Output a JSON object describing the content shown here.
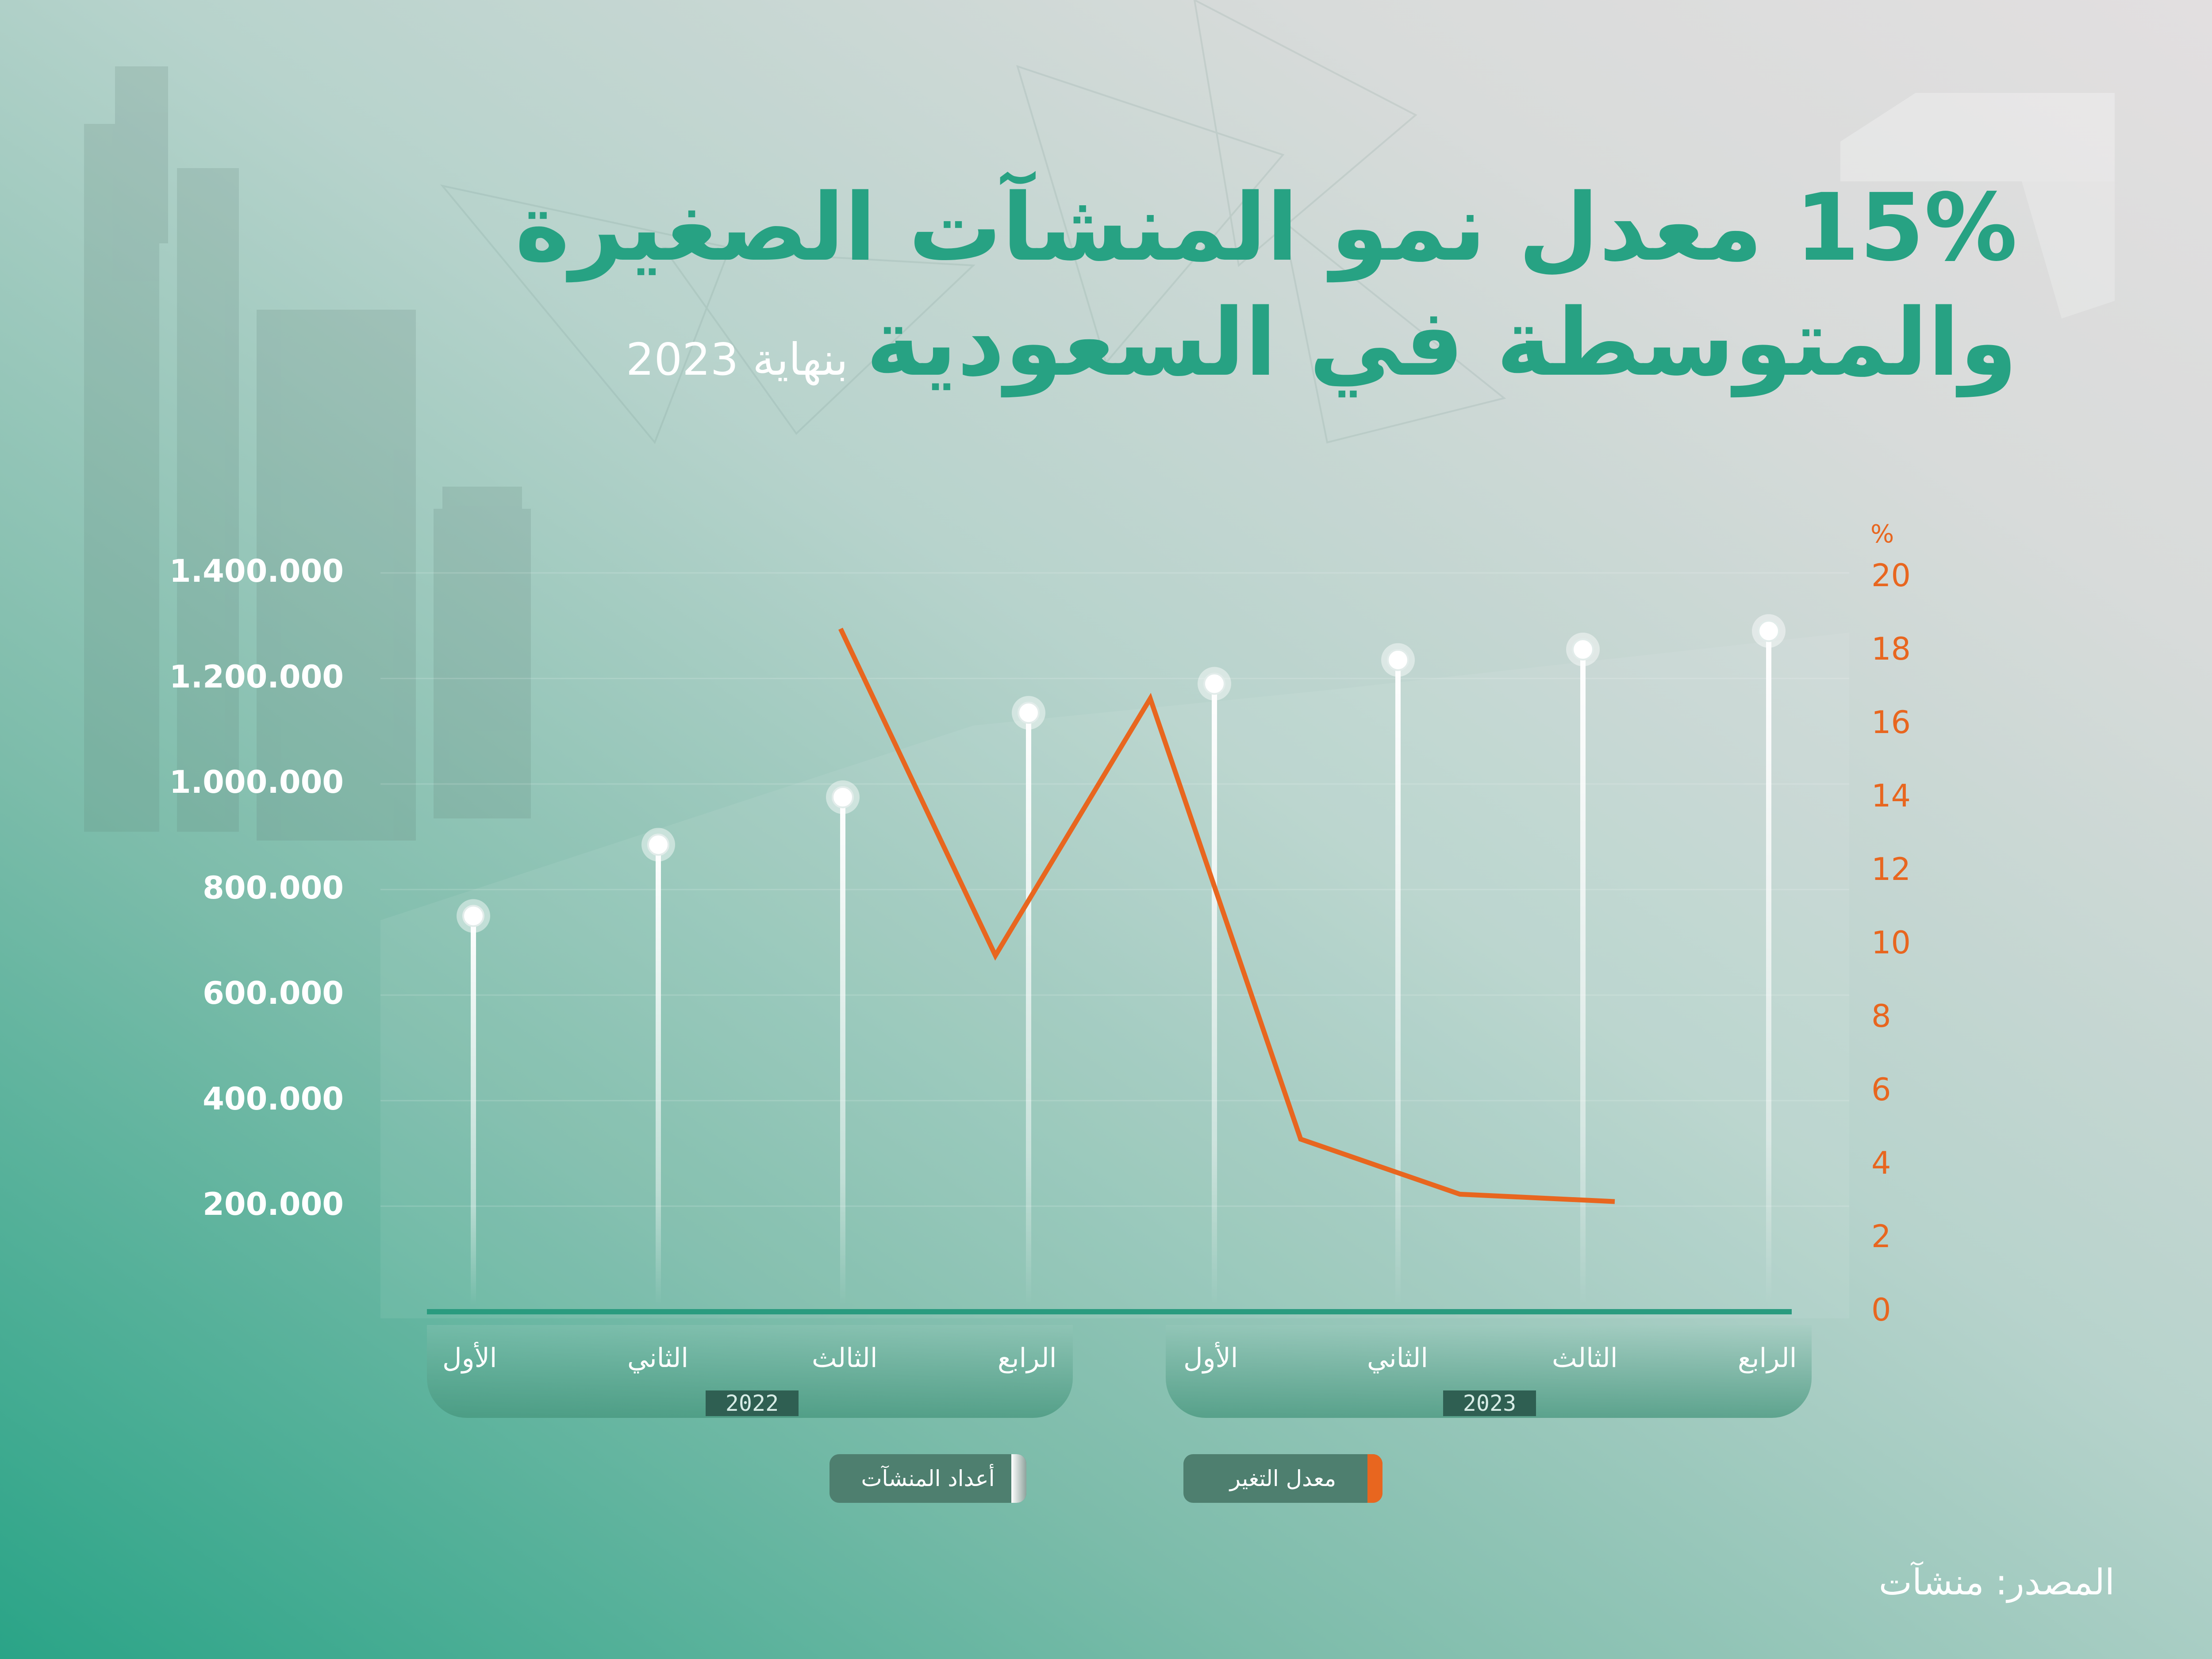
{
  "title": {
    "line1": "15% معدل نمو المنشآت الصغيرة",
    "line2": "والمتوسطة في السعودية",
    "subtitle": "بنهاية 2023"
  },
  "legend": {
    "count_label": "أعداد المنشآت",
    "rate_label": "معدل التغير"
  },
  "source": "المصدر: منشآت",
  "colors": {
    "title": "#27a283",
    "rate_line": "#e8661f",
    "stem": "#ffffff",
    "axis": "#2a9b7f"
  },
  "chart_data": {
    "type": "line",
    "years": [
      "2022",
      "2023"
    ],
    "categories": [
      "الأول",
      "الثاني",
      "الثالث",
      "الرابع",
      "الأول",
      "الثاني",
      "الثالث",
      "الرابع"
    ],
    "series": [
      {
        "name": "أعداد المنشآت",
        "type": "lollipop",
        "axis": "left",
        "values": [
          750000,
          885000,
          975000,
          1135000,
          1190000,
          1235000,
          1255000,
          1290000
        ]
      },
      {
        "name": "معدل التغير",
        "type": "line",
        "axis": "right",
        "unit": "%",
        "values": [
          null,
          null,
          18.6,
          9.7,
          16.7,
          4.7,
          3.2,
          3.0
        ]
      }
    ],
    "y_left_ticks": [
      "200.000",
      "400.000",
      "600.000",
      "800.000",
      "1.000.000",
      "1.200.000",
      "1.400.000"
    ],
    "y_left_tick_values": [
      200000,
      400000,
      600000,
      800000,
      1000000,
      1200000,
      1400000
    ],
    "y_right_unit": "%",
    "y_right_ticks": [
      "0",
      "2",
      "4",
      "6",
      "8",
      "10",
      "12",
      "14",
      "16",
      "18",
      "20"
    ],
    "ylim_left": [
      0,
      1400000
    ],
    "ylim_right": [
      0,
      20
    ],
    "grid": true
  }
}
